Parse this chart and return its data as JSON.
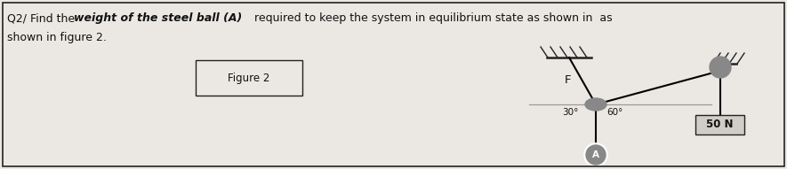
{
  "bg_color": "#ebe8e3",
  "border_color": "#222222",
  "text_color": "#111111",
  "gray_circle": "#888888",
  "gray_line": "#999999",
  "label_F": "F",
  "label_30": "30°",
  "label_60": "60°",
  "label_50N": "50 N",
  "label_A": "A",
  "figure_label": "Figure 2",
  "q_normal1": "Q2/ Find the ",
  "q_italic": "weight of the steel ball (A)",
  "q_normal2": " required to keep the system in equilibrium state as shown in  as",
  "q_line2": "shown in figure 2."
}
